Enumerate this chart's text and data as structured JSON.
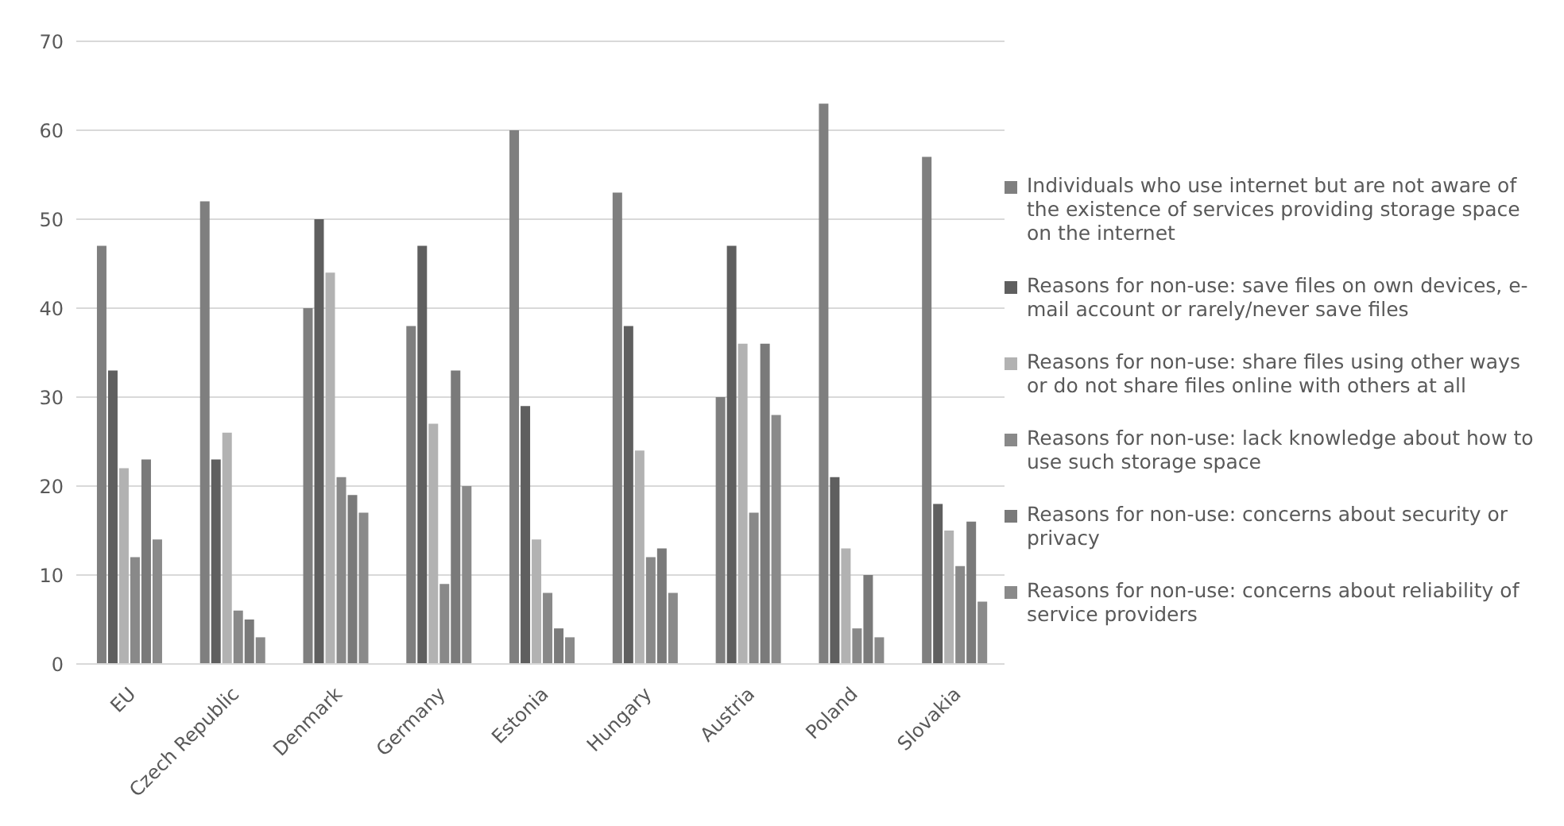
{
  "chart_data": {
    "type": "bar",
    "categories": [
      "EU",
      "Czech Republic",
      "Denmark",
      "Germany",
      "Estonia",
      "Hungary",
      "Austria",
      "Poland",
      "Slovakia"
    ],
    "series": [
      {
        "name": "Individuals who use internet but are not aware of the existence of services providing storage space on the internet",
        "color": "#7f7f7f",
        "values": [
          47,
          52,
          40,
          38,
          60,
          53,
          30,
          63,
          57
        ]
      },
      {
        "name": "Reasons for non-use: save files on own devices, e-mail account or rarely/never save files",
        "color": "#5f5f5f",
        "values": [
          33,
          23,
          50,
          47,
          29,
          38,
          47,
          21,
          18
        ]
      },
      {
        "name": "Reasons for non-use: share files using other ways or do not share files online with others at all",
        "color": "#b2b2b2",
        "values": [
          22,
          26,
          44,
          27,
          14,
          24,
          36,
          13,
          15
        ]
      },
      {
        "name": "Reasons for non-use: lack knowledge about how to use such storage space",
        "color": "#898989",
        "values": [
          12,
          6,
          21,
          9,
          8,
          12,
          17,
          4,
          11
        ]
      },
      {
        "name": "Reasons for non-use: concerns about security or privacy",
        "color": "#7a7a7a",
        "values": [
          23,
          5,
          19,
          33,
          4,
          13,
          36,
          10,
          16
        ]
      },
      {
        "name": "Reasons for non-use: concerns about reliability of service providers",
        "color": "#8a8a8a",
        "values": [
          14,
          3,
          17,
          20,
          3,
          8,
          28,
          3,
          7
        ]
      }
    ],
    "ylim": [
      0,
      70
    ],
    "yticks": [
      0,
      10,
      20,
      30,
      40,
      50,
      60,
      70
    ],
    "grid": "y",
    "legend": "right"
  }
}
